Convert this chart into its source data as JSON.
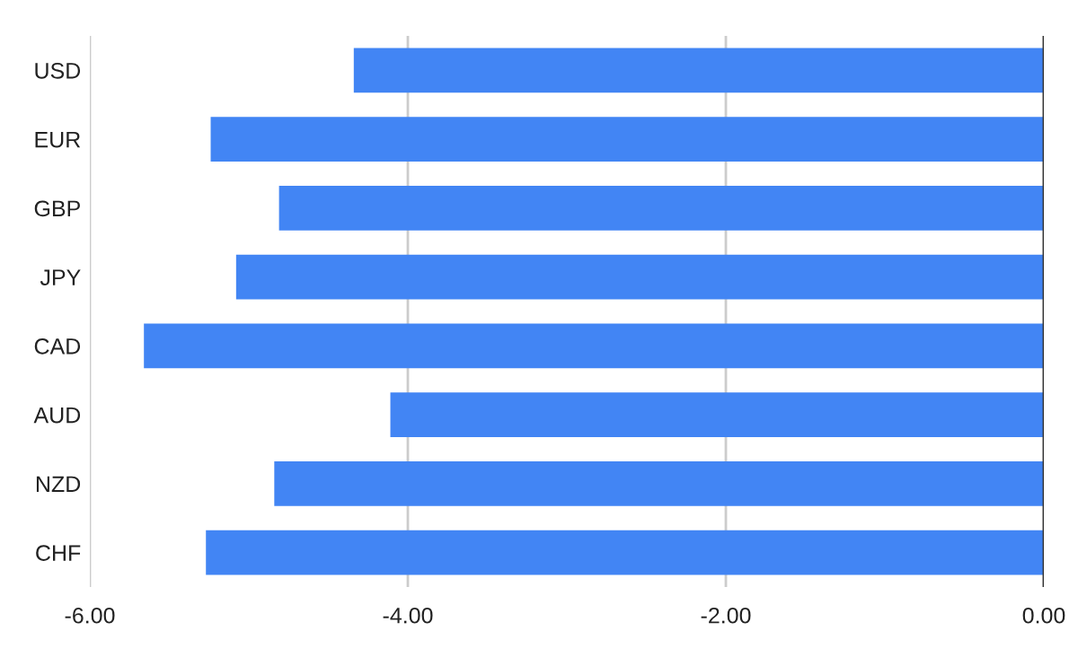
{
  "chart_data": {
    "type": "bar",
    "orientation": "horizontal",
    "categories": [
      "USD",
      "EUR",
      "GBP",
      "JPY",
      "CAD",
      "AUD",
      "NZD",
      "CHF"
    ],
    "values": [
      -4.34,
      -5.24,
      -4.81,
      -5.08,
      -5.66,
      -4.11,
      -4.84,
      -5.27
    ],
    "color": "#4285f4",
    "xlim": [
      -6,
      0
    ],
    "xticks": [
      {
        "value": -6,
        "label": "-6.00"
      },
      {
        "value": -4,
        "label": "-4.00"
      },
      {
        "value": -2,
        "label": "-2.00"
      },
      {
        "value": 0,
        "label": "0.00"
      }
    ],
    "grid": "x",
    "legend": false
  }
}
